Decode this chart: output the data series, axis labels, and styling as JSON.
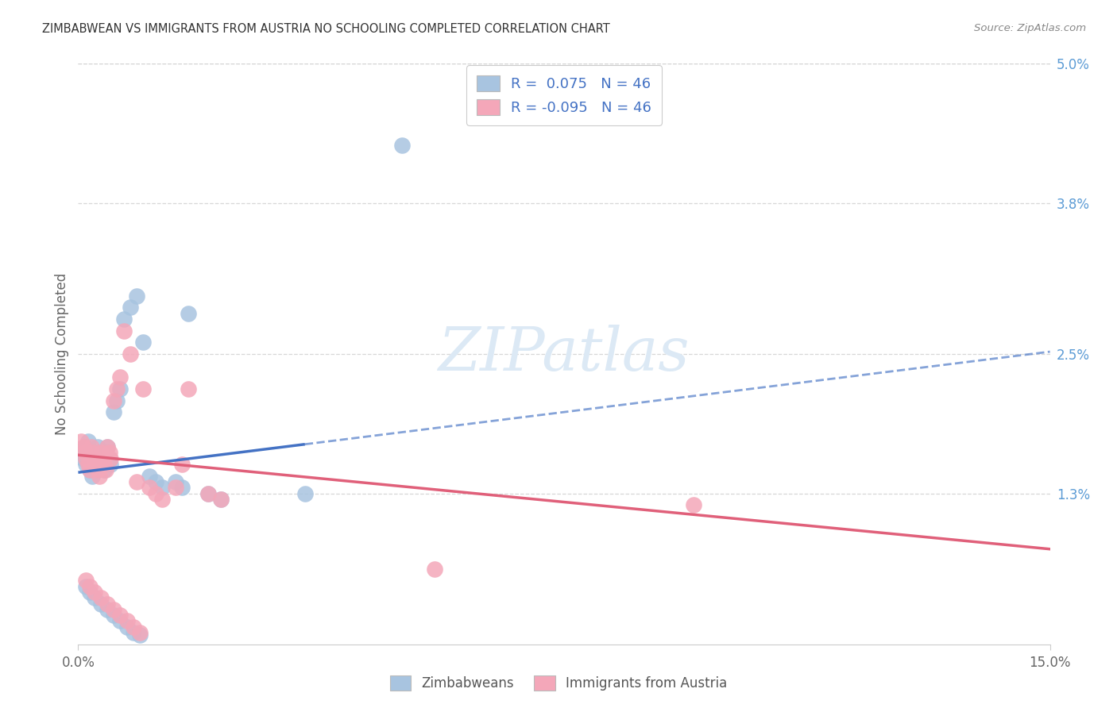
{
  "title": "ZIMBABWEAN VS IMMIGRANTS FROM AUSTRIA NO SCHOOLING COMPLETED CORRELATION CHART",
  "source": "Source: ZipAtlas.com",
  "ylabel": "No Schooling Completed",
  "xlim": [
    0.0,
    15.0
  ],
  "ylim": [
    0.0,
    5.0
  ],
  "right_ytick_vals": [
    0.0,
    1.3,
    2.5,
    3.8,
    5.0
  ],
  "right_ytick_labels": [
    "",
    "1.3%",
    "2.5%",
    "3.8%",
    "5.0%"
  ],
  "xtick_vals": [
    0.0,
    15.0
  ],
  "xtick_labels": [
    "0.0%",
    "15.0%"
  ],
  "blue_label": "Zimbabweans",
  "pink_label": "Immigrants from Austria",
  "legend_line1": "R =  0.075   N = 46",
  "legend_line2": "R = -0.095   N = 46",
  "blue_scatter_color": "#a8c4e0",
  "pink_scatter_color": "#f4a7b9",
  "blue_line_color": "#4472c4",
  "pink_line_color": "#e0607a",
  "grid_color": "#d3d3d3",
  "title_color": "#333333",
  "source_color": "#888888",
  "axis_label_color": "#666666",
  "right_ytick_color": "#5b9bd5",
  "watermark_color": "#dce9f5",
  "blue_line_y0": 1.48,
  "blue_line_y1": 2.52,
  "blue_solid_x_end": 3.5,
  "pink_line_y0": 1.63,
  "pink_line_y1": 0.82,
  "blue_scatter_x": [
    0.05,
    0.08,
    0.1,
    0.12,
    0.15,
    0.18,
    0.2,
    0.22,
    0.25,
    0.28,
    0.3,
    0.32,
    0.35,
    0.38,
    0.4,
    0.42,
    0.45,
    0.48,
    0.5,
    0.55,
    0.6,
    0.65,
    0.7,
    0.8,
    0.9,
    1.0,
    1.1,
    1.2,
    1.3,
    1.5,
    1.6,
    1.7,
    2.0,
    2.2,
    0.12,
    0.18,
    0.25,
    0.35,
    0.45,
    0.55,
    0.65,
    0.75,
    0.85,
    0.95,
    3.5,
    5.0
  ],
  "blue_scatter_y": [
    1.65,
    1.6,
    1.7,
    1.55,
    1.75,
    1.5,
    1.6,
    1.45,
    1.55,
    1.5,
    1.7,
    1.65,
    1.6,
    1.55,
    1.5,
    1.65,
    1.7,
    1.6,
    1.55,
    2.0,
    2.1,
    2.2,
    2.8,
    2.9,
    3.0,
    2.6,
    1.45,
    1.4,
    1.35,
    1.4,
    1.35,
    2.85,
    1.3,
    1.25,
    0.5,
    0.45,
    0.4,
    0.35,
    0.3,
    0.25,
    0.2,
    0.15,
    0.1,
    0.08,
    1.3,
    4.3
  ],
  "pink_scatter_x": [
    0.05,
    0.08,
    0.1,
    0.12,
    0.15,
    0.18,
    0.2,
    0.22,
    0.25,
    0.28,
    0.3,
    0.32,
    0.35,
    0.38,
    0.4,
    0.42,
    0.45,
    0.48,
    0.5,
    0.55,
    0.6,
    0.65,
    0.7,
    0.8,
    0.9,
    1.0,
    1.1,
    1.2,
    1.3,
    1.5,
    1.6,
    1.7,
    2.0,
    2.2,
    0.12,
    0.18,
    0.25,
    0.35,
    0.45,
    0.55,
    0.65,
    0.75,
    0.85,
    0.95,
    5.5,
    9.5
  ],
  "pink_scatter_y": [
    1.75,
    1.7,
    1.65,
    1.6,
    1.55,
    1.5,
    1.7,
    1.65,
    1.6,
    1.55,
    1.5,
    1.45,
    1.65,
    1.6,
    1.55,
    1.5,
    1.7,
    1.65,
    1.6,
    2.1,
    2.2,
    2.3,
    2.7,
    2.5,
    1.4,
    2.2,
    1.35,
    1.3,
    1.25,
    1.35,
    1.55,
    2.2,
    1.3,
    1.25,
    0.55,
    0.5,
    0.45,
    0.4,
    0.35,
    0.3,
    0.25,
    0.2,
    0.15,
    0.1,
    0.65,
    1.2
  ]
}
